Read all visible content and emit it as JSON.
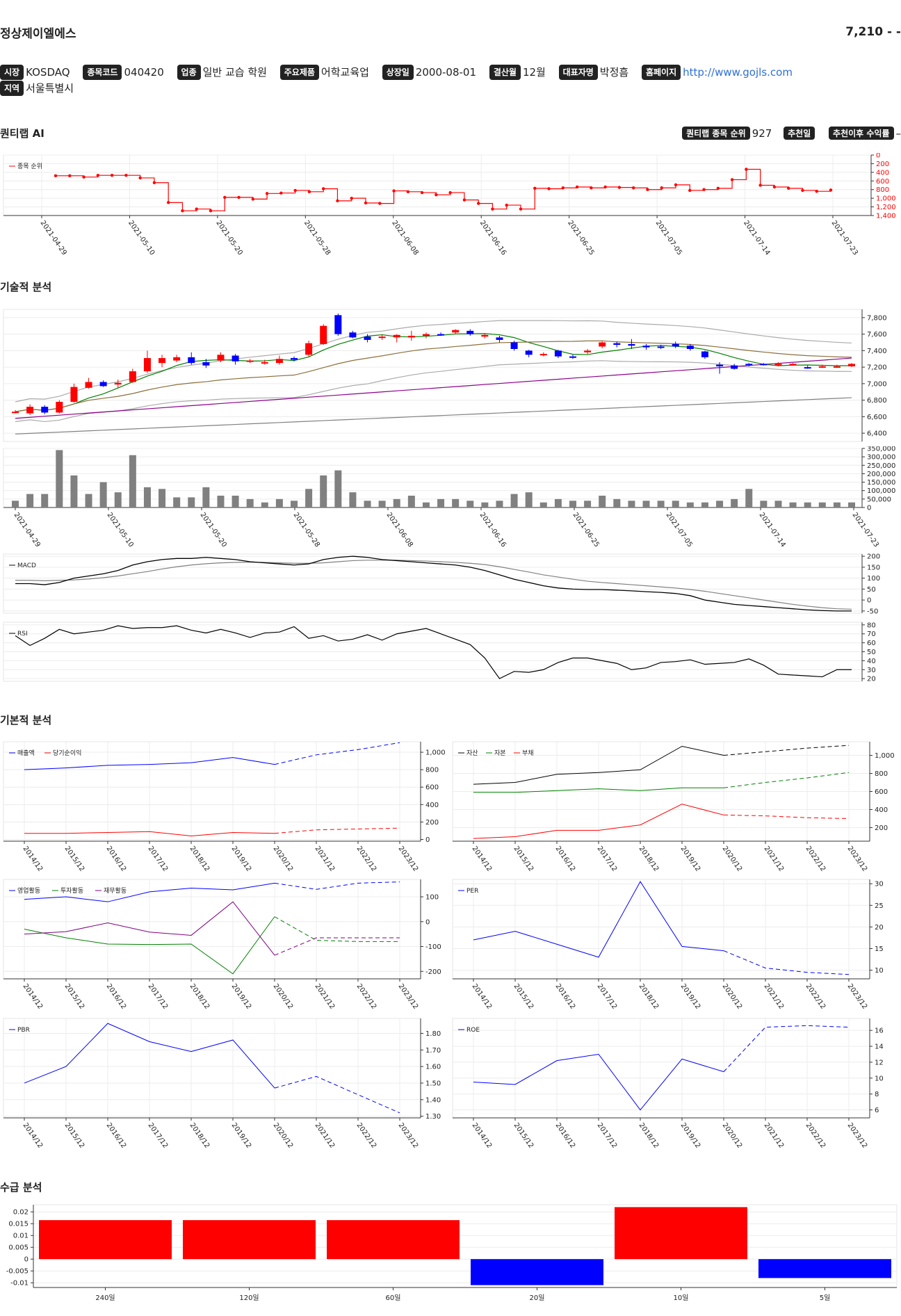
{
  "header": {
    "name": "정상제이엘에스",
    "price": "7,210 - -"
  },
  "info": {
    "market_tag": "시장",
    "market": "KOSDAQ",
    "code_tag": "종목코드",
    "code": "040420",
    "industry_tag": "업종",
    "industry": "일반 교습 학원",
    "product_tag": "주요제품",
    "product": "어학교육업",
    "listing_tag": "상장일",
    "listing": "2000-08-01",
    "fiscal_tag": "결산월",
    "fiscal": "12월",
    "ceo_tag": "대표자명",
    "ceo": "박정흠",
    "home_tag": "홈페이지",
    "home": "http://www.gojls.com",
    "region_tag": "지역",
    "region": "서울특별시"
  },
  "sections": {
    "ai": "퀀티랩 AI",
    "tech": "기술적 분석",
    "fund": "기본적 분석",
    "flow": "수급 분석"
  },
  "ai": {
    "rank_tag": "퀀티랩 종목 순위",
    "rank": "927",
    "rec_tag": "추천일",
    "rec": "",
    "ret_tag": "추천이후 수익률",
    "ret": "–"
  },
  "chart_data": [
    {
      "type": "line",
      "legend": [
        "종목 순위"
      ],
      "y_inverted": true,
      "ylim": [
        0,
        1400
      ],
      "y_ticks": [
        "0",
        "200",
        "400",
        "600",
        "800",
        "1,000",
        "1,200",
        "1,400"
      ],
      "x_labels": [
        "2021-04-29",
        "2021-05-10",
        "2021-05-20",
        "2021-05-28",
        "2021-06-08",
        "2021-06-16",
        "2021-06-25",
        "2021-07-05",
        "2021-07-14",
        "2021-07-23"
      ],
      "values": [
        480,
        480,
        510,
        470,
        470,
        470,
        530,
        640,
        1100,
        1290,
        1250,
        1290,
        980,
        980,
        1020,
        890,
        880,
        820,
        850,
        780,
        1060,
        1000,
        1110,
        1120,
        830,
        850,
        870,
        920,
        870,
        1040,
        1120,
        1250,
        1160,
        1250,
        770,
        780,
        760,
        740,
        760,
        740,
        750,
        760,
        800,
        760,
        690,
        820,
        800,
        770,
        570,
        330,
        700,
        740,
        770,
        820,
        840,
        810
      ],
      "colors": {
        "line": "#ff0000"
      }
    },
    {
      "type": "candlestick",
      "ylim": [
        6300,
        7900
      ],
      "y_ticks": [
        "6,400",
        "6,600",
        "6,800",
        "7,000",
        "7,200",
        "7,400",
        "7,600",
        "7,800"
      ],
      "candles": [
        [
          6650,
          6660,
          6640,
          6680
        ],
        [
          6640,
          6720,
          6620,
          6750
        ],
        [
          6720,
          6650,
          6630,
          6740
        ],
        [
          6650,
          6780,
          6640,
          6800
        ],
        [
          6780,
          6960,
          6770,
          7000
        ],
        [
          6950,
          7020,
          6940,
          7070
        ],
        [
          7020,
          6970,
          6960,
          7040
        ],
        [
          6990,
          7010,
          6950,
          7050
        ],
        [
          7020,
          7150,
          7010,
          7180
        ],
        [
          7150,
          7310,
          7130,
          7400
        ],
        [
          7250,
          7310,
          7200,
          7350
        ],
        [
          7280,
          7320,
          7260,
          7350
        ],
        [
          7320,
          7250,
          7230,
          7380
        ],
        [
          7260,
          7220,
          7190,
          7300
        ],
        [
          7280,
          7350,
          7260,
          7380
        ],
        [
          7340,
          7270,
          7230,
          7360
        ],
        [
          7270,
          7280,
          7250,
          7300
        ],
        [
          7250,
          7260,
          7230,
          7290
        ],
        [
          7250,
          7300,
          7230,
          7340
        ],
        [
          7310,
          7290,
          7270,
          7330
        ],
        [
          7350,
          7490,
          7330,
          7520
        ],
        [
          7480,
          7700,
          7470,
          7720
        ],
        [
          7830,
          7600,
          7580,
          7850
        ],
        [
          7620,
          7560,
          7550,
          7640
        ],
        [
          7570,
          7530,
          7500,
          7600
        ],
        [
          7560,
          7570,
          7530,
          7590
        ],
        [
          7560,
          7590,
          7500,
          7600
        ],
        [
          7560,
          7580,
          7520,
          7640
        ],
        [
          7580,
          7600,
          7550,
          7620
        ],
        [
          7600,
          7590,
          7580,
          7620
        ],
        [
          7620,
          7650,
          7600,
          7660
        ],
        [
          7640,
          7600,
          7580,
          7660
        ],
        [
          7570,
          7590,
          7550,
          7610
        ],
        [
          7560,
          7530,
          7500,
          7580
        ],
        [
          7500,
          7420,
          7400,
          7520
        ],
        [
          7400,
          7350,
          7320,
          7410
        ],
        [
          7350,
          7360,
          7330,
          7380
        ],
        [
          7400,
          7330,
          7310,
          7410
        ],
        [
          7330,
          7320,
          7300,
          7350
        ],
        [
          7380,
          7400,
          7360,
          7420
        ],
        [
          7450,
          7500,
          7430,
          7510
        ],
        [
          7490,
          7470,
          7440,
          7510
        ],
        [
          7480,
          7460,
          7420,
          7540
        ],
        [
          7460,
          7440,
          7410,
          7480
        ],
        [
          7450,
          7440,
          7420,
          7470
        ],
        [
          7480,
          7450,
          7430,
          7510
        ],
        [
          7460,
          7420,
          7400,
          7480
        ],
        [
          7390,
          7320,
          7300,
          7400
        ],
        [
          7230,
          7210,
          7120,
          7260
        ],
        [
          7220,
          7180,
          7170,
          7240
        ],
        [
          7240,
          7230,
          7210,
          7250
        ],
        [
          7240,
          7230,
          7220,
          7250
        ],
        [
          7230,
          7240,
          7210,
          7260
        ],
        [
          7230,
          7240,
          7220,
          7250
        ],
        [
          7200,
          7190,
          7180,
          7220
        ],
        [
          7200,
          7210,
          7190,
          7230
        ],
        [
          7200,
          7210,
          7190,
          7230
        ],
        [
          7210,
          7240,
          7200,
          7250
        ]
      ],
      "colors": {
        "up": "#ff0000",
        "down": "#0000ff",
        "ma5": "#008000",
        "ma20": "#8b6f3a",
        "ma60": "#8b008b",
        "ma120": "#808080",
        "band": "#aaaaaa"
      }
    },
    {
      "type": "bar",
      "ylim": [
        0,
        350000
      ],
      "y_ticks": [
        "0",
        "50,000",
        "100,000",
        "150,000",
        "200,000",
        "250,000",
        "300,000",
        "350,000"
      ],
      "values": [
        40000,
        80000,
        80000,
        340000,
        190000,
        80000,
        150000,
        90000,
        310000,
        120000,
        110000,
        60000,
        60000,
        120000,
        70000,
        70000,
        50000,
        30000,
        50000,
        40000,
        110000,
        190000,
        220000,
        90000,
        40000,
        40000,
        50000,
        70000,
        30000,
        50000,
        50000,
        40000,
        30000,
        40000,
        80000,
        90000,
        30000,
        50000,
        40000,
        40000,
        70000,
        50000,
        40000,
        40000,
        40000,
        40000,
        30000,
        30000,
        40000,
        50000,
        110000,
        40000,
        40000,
        30000,
        30000,
        30000,
        30000,
        30000
      ],
      "colors": {
        "bar": "#808080"
      }
    },
    {
      "type": "line",
      "legend": [
        "MACD"
      ],
      "ylim": [
        -60,
        210
      ],
      "y_ticks": [
        "-50",
        "0",
        "50",
        "100",
        "150",
        "200"
      ],
      "macd": [
        75,
        75,
        70,
        80,
        100,
        110,
        120,
        135,
        160,
        175,
        185,
        190,
        190,
        195,
        190,
        185,
        175,
        170,
        165,
        160,
        165,
        185,
        195,
        200,
        195,
        185,
        180,
        175,
        170,
        165,
        160,
        150,
        135,
        115,
        95,
        80,
        65,
        55,
        50,
        48,
        48,
        45,
        42,
        38,
        35,
        30,
        20,
        0,
        -10,
        -20,
        -25,
        -30,
        -35,
        -40,
        -45,
        -48,
        -50,
        -50
      ],
      "signal": [
        90,
        90,
        88,
        90,
        92,
        96,
        102,
        110,
        120,
        130,
        142,
        152,
        160,
        166,
        170,
        172,
        173,
        172,
        170,
        168,
        168,
        170,
        175,
        180,
        182,
        182,
        182,
        180,
        178,
        175,
        172,
        168,
        162,
        152,
        140,
        128,
        115,
        105,
        95,
        86,
        80,
        75,
        70,
        65,
        60,
        55,
        48,
        40,
        30,
        20,
        10,
        0,
        -10,
        -20,
        -28,
        -35,
        -40,
        -42
      ],
      "colors": {
        "macd": "#000000",
        "signal": "#808080"
      }
    },
    {
      "type": "line",
      "legend": [
        "RSI"
      ],
      "ylim": [
        17,
        83
      ],
      "y_ticks": [
        "20",
        "30",
        "40",
        "50",
        "60",
        "70",
        "80"
      ],
      "values": [
        68,
        57,
        65,
        75,
        70,
        72,
        74,
        79,
        76,
        77,
        77,
        79,
        74,
        71,
        75,
        71,
        66,
        71,
        72,
        78,
        65,
        68,
        62,
        64,
        69,
        63,
        70,
        73,
        76,
        70,
        64,
        58,
        43,
        20,
        28,
        27,
        30,
        38,
        43,
        43,
        40,
        37,
        30,
        32,
        38,
        39,
        41,
        36,
        37,
        38,
        42,
        35,
        25,
        24,
        23,
        22,
        30,
        30
      ],
      "colors": {
        "line": "#000000"
      }
    },
    {
      "type": "line",
      "legend": [
        "매출액",
        "당기순이익"
      ],
      "ylim": [
        -20,
        1120
      ],
      "y_ticks": [
        "0",
        "200",
        "400",
        "600",
        "800",
        "1,000"
      ],
      "x_labels": [
        "2014/12",
        "2015/12",
        "2016/12",
        "2017/12",
        "2018/12",
        "2019/12",
        "2020/12",
        "2021/12",
        "2022/12",
        "2023/12"
      ],
      "series": [
        {
          "name": "매출액",
          "values": [
            800,
            820,
            850,
            860,
            880,
            940,
            860,
            970,
            1030,
            1110
          ],
          "color": "#0000ff"
        },
        {
          "name": "당기순이익",
          "values": [
            70,
            70,
            80,
            90,
            40,
            80,
            70,
            110,
            120,
            130
          ],
          "color": "#ff0000"
        }
      ],
      "estimate_from_index": 6
    },
    {
      "type": "line",
      "legend": [
        "자산",
        "자본",
        "부채"
      ],
      "ylim": [
        50,
        1150
      ],
      "y_ticks": [
        "200",
        "400",
        "600",
        "800",
        "1,000"
      ],
      "x_labels": [
        "2014/12",
        "2015/12",
        "2016/12",
        "2017/12",
        "2018/12",
        "2019/12",
        "2020/12",
        "2021/12",
        "2022/12",
        "2023/12"
      ],
      "series": [
        {
          "name": "자산",
          "values": [
            680,
            700,
            790,
            810,
            840,
            1100,
            1000,
            1040,
            1080,
            1110
          ],
          "color": "#000000"
        },
        {
          "name": "자본",
          "values": [
            590,
            590,
            610,
            630,
            610,
            640,
            640,
            700,
            750,
            810
          ],
          "color": "#008000"
        },
        {
          "name": "부채",
          "values": [
            80,
            100,
            170,
            170,
            230,
            460,
            340,
            330,
            310,
            300
          ],
          "color": "#ff0000"
        }
      ],
      "estimate_from_index": 6
    },
    {
      "type": "line",
      "legend": [
        "영업활동",
        "투자활동",
        "재무활동"
      ],
      "ylim": [
        -230,
        170
      ],
      "y_ticks": [
        "-200",
        "-100",
        "0",
        "100"
      ],
      "x_labels": [
        "2014/12",
        "2015/12",
        "2016/12",
        "2017/12",
        "2018/12",
        "2019/12",
        "2020/12",
        "2021/12",
        "2022/12",
        "2023/12"
      ],
      "series": [
        {
          "name": "영업활동",
          "values": [
            90,
            100,
            80,
            120,
            135,
            128,
            155,
            130,
            155,
            160
          ],
          "color": "#0000ff"
        },
        {
          "name": "투자활동",
          "values": [
            -30,
            -65,
            -90,
            -92,
            -90,
            -210,
            20,
            -75,
            -80,
            -80
          ],
          "color": "#008000"
        },
        {
          "name": "재무활동",
          "values": [
            -50,
            -40,
            -5,
            -42,
            -55,
            80,
            -135,
            -65,
            -65,
            -65
          ],
          "color": "#800080"
        }
      ],
      "estimate_from_index": 6
    },
    {
      "type": "line",
      "legend": [
        "PER"
      ],
      "ylim": [
        8,
        31
      ],
      "y_ticks": [
        "10",
        "15",
        "20",
        "25",
        "30"
      ],
      "x_labels": [
        "2014/12",
        "2015/12",
        "2016/12",
        "2017/12",
        "2018/12",
        "2019/12",
        "2020/12",
        "2021/12",
        "2022/12",
        "2023/12"
      ],
      "series": [
        {
          "name": "PER",
          "values": [
            17,
            19,
            16,
            13,
            30.5,
            15.5,
            14.5,
            10.5,
            9.5,
            9
          ],
          "color": "#0000ff"
        }
      ],
      "estimate_from_index": 6
    },
    {
      "type": "line",
      "legend": [
        "PBR"
      ],
      "ylim": [
        1.29,
        1.89
      ],
      "y_ticks": [
        "1.30",
        "1.40",
        "1.50",
        "1.60",
        "1.70",
        "1.80"
      ],
      "x_labels": [
        "2014/12",
        "2015/12",
        "2016/12",
        "2017/12",
        "2018/12",
        "2019/12",
        "2020/12",
        "2021/12",
        "2022/12",
        "2023/12"
      ],
      "series": [
        {
          "name": "PBR",
          "values": [
            1.5,
            1.6,
            1.86,
            1.75,
            1.69,
            1.76,
            1.47,
            1.54,
            1.43,
            1.32
          ],
          "color": "#0000ff"
        }
      ],
      "estimate_from_index": 6
    },
    {
      "type": "line",
      "legend": [
        "ROE"
      ],
      "ylim": [
        5,
        17.5
      ],
      "y_ticks": [
        "6",
        "8",
        "10",
        "12",
        "14",
        "16"
      ],
      "x_labels": [
        "2014/12",
        "2015/12",
        "2016/12",
        "2017/12",
        "2018/12",
        "2019/12",
        "2020/12",
        "2021/12",
        "2022/12",
        "2023/12"
      ],
      "series": [
        {
          "name": "ROE",
          "values": [
            9.5,
            9.2,
            12.2,
            13,
            6,
            12.4,
            10.8,
            16.4,
            16.6,
            16.4
          ],
          "color": "#0000ff"
        }
      ],
      "estimate_from_index": 6
    },
    {
      "type": "bar",
      "ylim": [
        -0.012,
        0.023
      ],
      "y_ticks": [
        "-0.01",
        "-0.005",
        "0",
        "0.005",
        "0.01",
        "0.015",
        "0.02"
      ],
      "categories": [
        "240일",
        "120일",
        "60일",
        "20일",
        "10일",
        "5일"
      ],
      "values": [
        0.0165,
        0.0165,
        0.0165,
        -0.011,
        0.022,
        -0.008
      ],
      "colors": {
        "pos": "#ff0000",
        "neg": "#0000ff"
      }
    }
  ]
}
